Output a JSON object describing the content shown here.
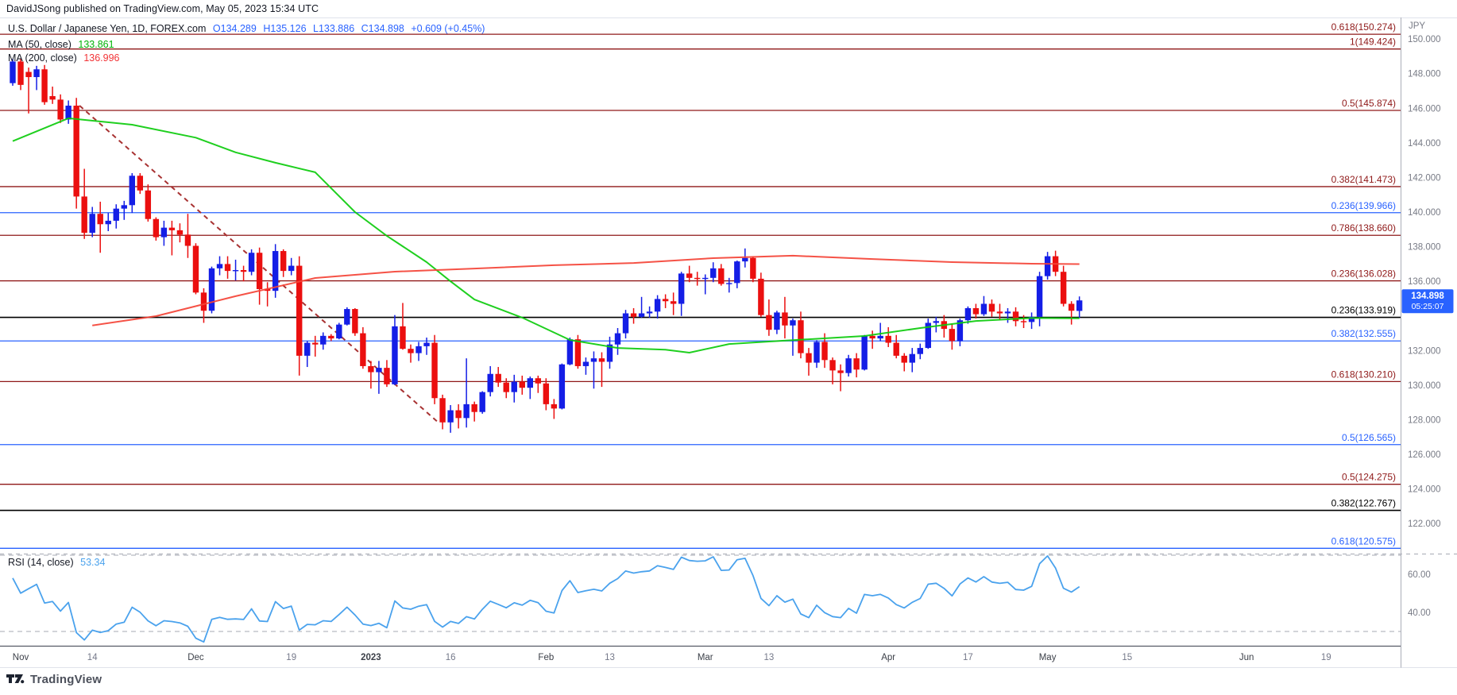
{
  "header": {
    "published": "DavidJSong published on TradingView.com, May 05, 2023 15:34 UTC"
  },
  "legend": {
    "row1": {
      "symbol": "U.S. Dollar / Japanese Yen, 1D, FOREX.com",
      "o": "O134.289",
      "h": "H135.126",
      "l": "L133.886",
      "c": "C134.898",
      "chg": "+0.609 (+0.45%)"
    },
    "row2": {
      "label": "MA (50, close)",
      "value": "133.861"
    },
    "row3": {
      "label": "MA (200, close)",
      "value": "136.996"
    },
    "rsi": {
      "label": "RSI (14, close)",
      "value": "53.34"
    }
  },
  "footer": {
    "brand": "TradingView"
  },
  "colors": {
    "up": "#141ee6",
    "down": "#eb0f0f",
    "fib_red": "#8f1818",
    "fib_blue": "#2962ff",
    "fib_black": "#000000",
    "ma50": "#0ccb0c",
    "ma200": "#f44336",
    "rsi_line": "#4aa2ed",
    "trendline": "#a83232",
    "badge": "#2962ff",
    "axis_text": "#787b86",
    "time_month": "#3c4049",
    "time_day": "#75798a",
    "border_light": "#e0e3eb",
    "border_axis": "#abaeb8",
    "axis_baseline": "#555a64",
    "separator": "#b2b5be",
    "rsi_band": "#b8bbc2"
  },
  "chart_data": {
    "type": "candlestick",
    "title": "U.S. Dollar / Japanese Yen",
    "interval": "1D",
    "exchange": "FOREX.com",
    "price_currency": "JPY",
    "visible_price_range": [
      120.3,
      151.2
    ],
    "grid": false,
    "ohlc": [
      [
        147.45,
        148.85,
        147.3,
        148.7
      ],
      [
        148.7,
        148.85,
        147.05,
        147.35
      ],
      [
        148.1,
        148.35,
        145.7,
        147.8
      ],
      [
        147.8,
        148.45,
        147.05,
        148.25
      ],
      [
        148.25,
        148.5,
        146.2,
        146.35
      ],
      [
        146.7,
        147.25,
        146.25,
        146.5
      ],
      [
        146.5,
        146.8,
        145.15,
        145.35
      ],
      [
        145.35,
        146.45,
        145.1,
        146.15
      ],
      [
        146.15,
        146.6,
        140.2,
        140.9
      ],
      [
        140.9,
        142.5,
        138.45,
        138.8
      ],
      [
        138.8,
        140.3,
        138.55,
        139.9
      ],
      [
        139.9,
        140.6,
        137.65,
        139.3
      ],
      [
        139.3,
        139.95,
        138.9,
        139.5
      ],
      [
        139.5,
        140.45,
        139.05,
        140.2
      ],
      [
        140.2,
        140.65,
        139.55,
        140.4
      ],
      [
        140.4,
        142.25,
        139.95,
        142.1
      ],
      [
        142.1,
        142.25,
        141.05,
        141.25
      ],
      [
        141.25,
        141.6,
        139.45,
        139.6
      ],
      [
        139.6,
        139.7,
        138.35,
        138.55
      ],
      [
        138.55,
        139.5,
        138.05,
        139.1
      ],
      [
        139.1,
        139.5,
        137.5,
        138.95
      ],
      [
        138.95,
        139.35,
        138.25,
        138.7
      ],
      [
        138.7,
        139.9,
        137.35,
        138.05
      ],
      [
        138.05,
        138.2,
        135.25,
        135.35
      ],
      [
        135.35,
        135.6,
        133.6,
        134.3
      ],
      [
        134.3,
        136.85,
        134.15,
        136.75
      ],
      [
        136.75,
        137.45,
        136.35,
        137.0
      ],
      [
        137.0,
        137.45,
        136.15,
        136.6
      ],
      [
        136.6,
        137.25,
        136.05,
        136.65
      ],
      [
        136.65,
        136.9,
        136.0,
        136.55
      ],
      [
        136.55,
        137.85,
        136.35,
        137.65
      ],
      [
        137.65,
        137.95,
        134.65,
        135.55
      ],
      [
        135.55,
        135.95,
        134.55,
        135.45
      ],
      [
        135.45,
        138.15,
        135.05,
        137.75
      ],
      [
        137.75,
        137.85,
        136.25,
        136.6
      ],
      [
        136.6,
        137.35,
        136.35,
        136.9
      ],
      [
        136.9,
        137.45,
        130.55,
        131.7
      ],
      [
        131.7,
        132.55,
        131.05,
        132.45
      ],
      [
        132.45,
        132.85,
        131.65,
        132.35
      ],
      [
        132.35,
        133.05,
        132.05,
        132.85
      ],
      [
        132.85,
        132.95,
        132.55,
        132.7
      ],
      [
        132.7,
        133.6,
        132.65,
        133.5
      ],
      [
        133.5,
        134.5,
        133.45,
        134.4
      ],
      [
        134.4,
        134.45,
        132.85,
        133.0
      ],
      [
        133.0,
        133.35,
        130.95,
        131.1
      ],
      [
        131.1,
        131.4,
        129.8,
        130.75
      ],
      [
        130.75,
        131.4,
        129.5,
        131.0
      ],
      [
        131.0,
        131.45,
        129.9,
        130.05
      ],
      [
        130.05,
        134.05,
        130.0,
        133.4
      ],
      [
        133.4,
        134.75,
        132.05,
        132.1
      ],
      [
        132.1,
        132.35,
        131.3,
        131.85
      ],
      [
        131.85,
        132.5,
        131.4,
        132.25
      ],
      [
        132.25,
        132.75,
        131.75,
        132.45
      ],
      [
        132.45,
        132.9,
        128.9,
        129.25
      ],
      [
        129.25,
        129.45,
        127.45,
        127.85
      ],
      [
        127.85,
        128.85,
        127.25,
        128.55
      ],
      [
        128.55,
        128.9,
        127.5,
        128.1
      ],
      [
        128.1,
        131.55,
        127.55,
        128.9
      ],
      [
        128.9,
        129.05,
        127.9,
        128.45
      ],
      [
        128.45,
        129.65,
        128.35,
        129.6
      ],
      [
        129.6,
        131.1,
        129.35,
        130.65
      ],
      [
        130.65,
        131.05,
        129.9,
        130.15
      ],
      [
        130.15,
        130.4,
        129.25,
        129.6
      ],
      [
        129.6,
        130.6,
        129.0,
        130.2
      ],
      [
        130.2,
        130.55,
        129.45,
        129.85
      ],
      [
        129.85,
        130.5,
        129.2,
        130.4
      ],
      [
        130.4,
        130.55,
        129.55,
        130.1
      ],
      [
        130.1,
        130.4,
        128.55,
        128.9
      ],
      [
        128.9,
        129.2,
        128.05,
        128.65
      ],
      [
        128.65,
        131.25,
        128.6,
        131.2
      ],
      [
        131.2,
        132.75,
        131.15,
        132.65
      ],
      [
        132.65,
        132.9,
        130.95,
        131.1
      ],
      [
        131.1,
        131.6,
        130.6,
        131.35
      ],
      [
        131.35,
        131.95,
        129.8,
        131.55
      ],
      [
        131.55,
        131.9,
        129.9,
        131.35
      ],
      [
        131.35,
        132.8,
        130.95,
        132.35
      ],
      [
        132.35,
        133.3,
        131.75,
        133.0
      ],
      [
        133.0,
        134.35,
        132.7,
        134.15
      ],
      [
        134.15,
        134.45,
        133.55,
        133.95
      ],
      [
        133.95,
        135.1,
        133.9,
        134.15
      ],
      [
        134.15,
        134.55,
        133.9,
        134.25
      ],
      [
        134.25,
        135.2,
        133.85,
        134.98
      ],
      [
        134.98,
        135.25,
        134.45,
        134.85
      ],
      [
        134.85,
        135.35,
        134.05,
        134.7
      ],
      [
        134.7,
        136.55,
        134.0,
        136.45
      ],
      [
        136.45,
        136.9,
        135.95,
        136.2
      ],
      [
        136.2,
        136.55,
        135.75,
        136.15
      ],
      [
        136.15,
        136.4,
        135.25,
        136.2
      ],
      [
        136.2,
        137.1,
        135.95,
        136.75
      ],
      [
        136.75,
        137.0,
        135.75,
        135.85
      ],
      [
        135.85,
        136.2,
        135.35,
        135.9
      ],
      [
        135.9,
        137.2,
        135.6,
        137.15
      ],
      [
        137.15,
        137.9,
        136.8,
        137.35
      ],
      [
        137.35,
        137.45,
        135.95,
        136.15
      ],
      [
        136.15,
        136.5,
        133.95,
        134.05
      ],
      [
        134.05,
        134.95,
        132.85,
        133.2
      ],
      [
        133.2,
        134.3,
        132.95,
        134.2
      ],
      [
        134.2,
        135.1,
        132.7,
        133.45
      ],
      [
        133.45,
        133.85,
        131.7,
        133.75
      ],
      [
        133.75,
        134.25,
        131.55,
        131.85
      ],
      [
        131.85,
        132.15,
        130.55,
        131.3
      ],
      [
        131.3,
        132.6,
        131.0,
        132.5
      ],
      [
        132.5,
        133.0,
        131.0,
        131.45
      ],
      [
        131.45,
        131.6,
        130.05,
        130.85
      ],
      [
        130.85,
        131.2,
        129.65,
        130.7
      ],
      [
        130.7,
        131.75,
        130.5,
        131.55
      ],
      [
        131.55,
        131.85,
        130.45,
        130.9
      ],
      [
        130.9,
        132.9,
        130.85,
        132.85
      ],
      [
        132.85,
        133.15,
        132.1,
        132.7
      ],
      [
        132.7,
        133.6,
        132.55,
        132.85
      ],
      [
        132.85,
        133.35,
        132.2,
        132.45
      ],
      [
        132.45,
        132.9,
        131.55,
        131.7
      ],
      [
        131.7,
        131.85,
        130.8,
        131.3
      ],
      [
        131.3,
        132.15,
        130.75,
        131.8
      ],
      [
        131.8,
        132.4,
        131.5,
        132.15
      ],
      [
        132.15,
        133.85,
        132.1,
        133.6
      ],
      [
        133.6,
        133.95,
        133.05,
        133.7
      ],
      [
        133.7,
        134.05,
        132.75,
        133.25
      ],
      [
        133.25,
        133.55,
        132.05,
        132.55
      ],
      [
        132.55,
        133.85,
        132.25,
        133.75
      ],
      [
        133.75,
        134.55,
        133.55,
        134.45
      ],
      [
        134.45,
        134.7,
        133.85,
        134.1
      ],
      [
        134.1,
        135.15,
        134.0,
        134.7
      ],
      [
        134.7,
        134.95,
        133.95,
        134.25
      ],
      [
        134.25,
        134.7,
        133.75,
        134.15
      ],
      [
        134.15,
        134.45,
        133.6,
        134.25
      ],
      [
        134.25,
        134.5,
        133.4,
        133.7
      ],
      [
        133.7,
        134.05,
        133.3,
        133.65
      ],
      [
        133.65,
        134.2,
        133.25,
        133.95
      ],
      [
        133.95,
        136.55,
        133.4,
        136.3
      ],
      [
        136.3,
        137.7,
        136.1,
        137.45
      ],
      [
        137.45,
        137.77,
        136.3,
        136.55
      ],
      [
        136.55,
        136.9,
        134.55,
        134.7
      ],
      [
        134.7,
        134.85,
        133.5,
        134.3
      ],
      [
        134.289,
        135.126,
        133.886,
        134.898
      ]
    ],
    "time_axis_labels": [
      {
        "index": 1,
        "label": "Nov",
        "kind": "month"
      },
      {
        "index": 10,
        "label": "14",
        "kind": "day"
      },
      {
        "index": 23,
        "label": "Dec",
        "kind": "month"
      },
      {
        "index": 35,
        "label": "19",
        "kind": "day"
      },
      {
        "index": 45,
        "label": "2023",
        "kind": "year"
      },
      {
        "index": 55,
        "label": "16",
        "kind": "day"
      },
      {
        "index": 67,
        "label": "Feb",
        "kind": "month"
      },
      {
        "index": 75,
        "label": "13",
        "kind": "day"
      },
      {
        "index": 87,
        "label": "Mar",
        "kind": "month"
      },
      {
        "index": 95,
        "label": "13",
        "kind": "day"
      },
      {
        "index": 110,
        "label": "Apr",
        "kind": "month"
      },
      {
        "index": 120,
        "label": "17",
        "kind": "day"
      },
      {
        "index": 130,
        "label": "May",
        "kind": "month"
      },
      {
        "index": 140,
        "label": "15",
        "kind": "day"
      },
      {
        "index": 155,
        "label": "Jun",
        "kind": "month"
      },
      {
        "index": 165,
        "label": "19",
        "kind": "day"
      }
    ],
    "price_axis": {
      "currency_label": "JPY",
      "ticks": [
        {
          "label": "150.000",
          "value": 150
        },
        {
          "label": "148.000",
          "value": 148
        },
        {
          "label": "146.000",
          "value": 146
        },
        {
          "label": "144.000",
          "value": 144
        },
        {
          "label": "142.000",
          "value": 142
        },
        {
          "label": "140.000",
          "value": 140
        },
        {
          "label": "138.000",
          "value": 138
        },
        {
          "label": "136.000",
          "value": 136
        },
        {
          "label": "132.000",
          "value": 132
        },
        {
          "label": "130.000",
          "value": 130
        },
        {
          "label": "128.000",
          "value": 128
        },
        {
          "label": "126.000",
          "value": 126
        },
        {
          "label": "124.000",
          "value": 124
        },
        {
          "label": "122.000",
          "value": 122
        }
      ]
    },
    "fib_levels": [
      {
        "label": "0.618(150.274)",
        "price": 150.274,
        "color": "red"
      },
      {
        "label": "1(149.424)",
        "price": 149.424,
        "color": "red"
      },
      {
        "label": "0.5(145.874)",
        "price": 145.874,
        "color": "red"
      },
      {
        "label": "0.382(141.473)",
        "price": 141.473,
        "color": "red"
      },
      {
        "label": "0.236(139.966)",
        "price": 139.966,
        "color": "blue"
      },
      {
        "label": "0.786(138.660)",
        "price": 138.66,
        "color": "red"
      },
      {
        "label": "0.236(136.028)",
        "price": 136.028,
        "color": "red"
      },
      {
        "label": "0.236(133.919)",
        "price": 133.919,
        "color": "black"
      },
      {
        "label": "0.382(132.555)",
        "price": 132.555,
        "color": "blue"
      },
      {
        "label": "0.618(130.210)",
        "price": 130.21,
        "color": "red"
      },
      {
        "label": "0.5(126.565)",
        "price": 126.565,
        "color": "blue"
      },
      {
        "label": "0.5(124.275)",
        "price": 124.275,
        "color": "red"
      },
      {
        "label": "0.382(122.767)",
        "price": 122.767,
        "color": "black"
      },
      {
        "label": "0.618(120.575)",
        "price": 120.575,
        "color": "blue"
      }
    ],
    "trendline": {
      "i1": 8.4,
      "p1": 146.15,
      "i2": 53.6,
      "p2": 127.79
    },
    "ma50": {
      "name": "MA 50",
      "last": 133.861,
      "points": [
        [
          0,
          144.1
        ],
        [
          7,
          145.42
        ],
        [
          15,
          145.05
        ],
        [
          23,
          144.3
        ],
        [
          28,
          143.45
        ],
        [
          33,
          142.85
        ],
        [
          38,
          142.3
        ],
        [
          43,
          140.0
        ],
        [
          47,
          138.63
        ],
        [
          52,
          137.11
        ],
        [
          55,
          136.0
        ],
        [
          58,
          134.95
        ],
        [
          64,
          133.9
        ],
        [
          70,
          132.61
        ],
        [
          76,
          132.15
        ],
        [
          82,
          132.05
        ],
        [
          85,
          131.88
        ],
        [
          90,
          132.38
        ],
        [
          95,
          132.52
        ],
        [
          107,
          132.84
        ],
        [
          114,
          133.3
        ],
        [
          121,
          133.71
        ],
        [
          128,
          133.88
        ],
        [
          134,
          133.861
        ]
      ]
    },
    "ma200": {
      "name": "MA 200",
      "last": 136.996,
      "points": [
        [
          10,
          133.45
        ],
        [
          18,
          133.99
        ],
        [
          28,
          135.14
        ],
        [
          38,
          136.19
        ],
        [
          48,
          136.56
        ],
        [
          58,
          136.74
        ],
        [
          68,
          136.93
        ],
        [
          78,
          137.06
        ],
        [
          88,
          137.34
        ],
        [
          98,
          137.48
        ],
        [
          108,
          137.29
        ],
        [
          118,
          137.11
        ],
        [
          128,
          137.02
        ],
        [
          134,
          136.996
        ]
      ]
    },
    "rsi": {
      "period": 14,
      "last": 53.34,
      "bands": [
        70,
        30
      ],
      "seed_avg_gain": 0.38,
      "seed_avg_loss": 0.275,
      "ticks": [
        {
          "label": "60.00",
          "value": 60
        },
        {
          "label": "40.00",
          "value": 40
        }
      ]
    },
    "last_price_badge": {
      "price": "134.898",
      "countdown": "05:25:07"
    }
  }
}
